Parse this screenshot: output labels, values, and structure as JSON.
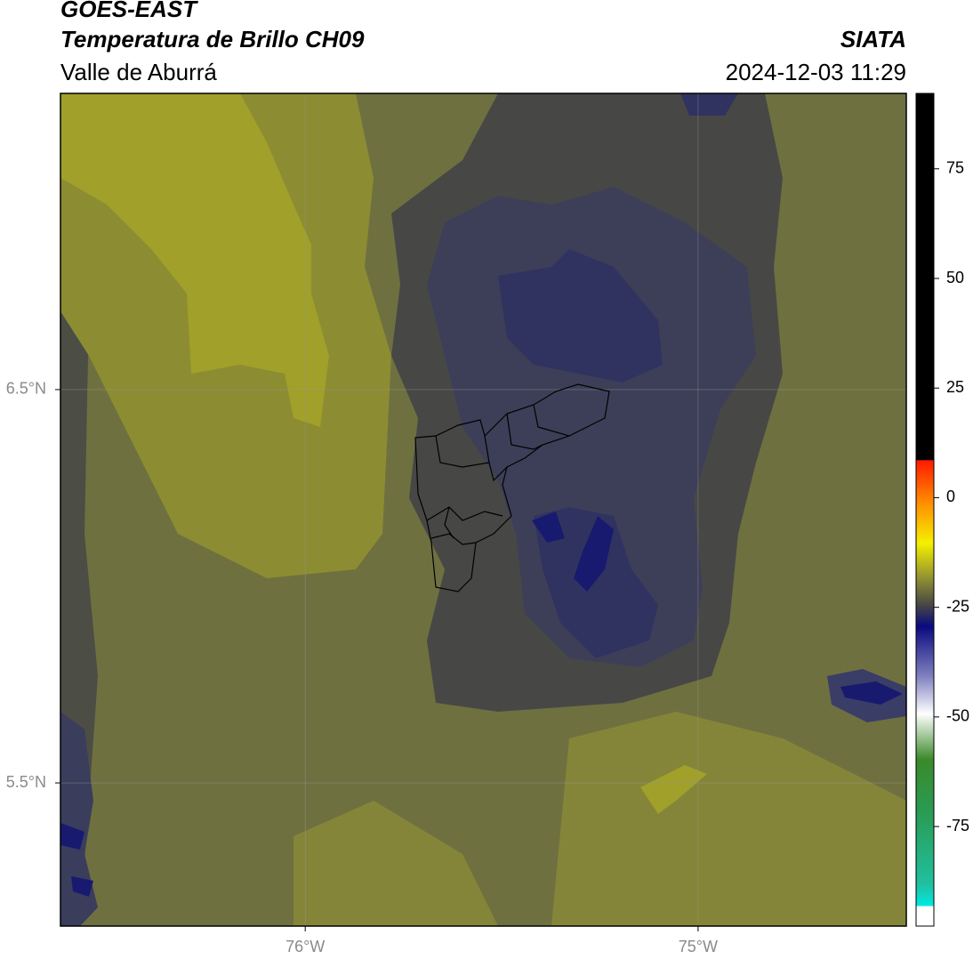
{
  "header": {
    "title": "GOES-EAST",
    "subtitle": "Temperatura de Brillo CH09",
    "region": "Valle de Aburrá",
    "source": "SIATA",
    "timestamp": "2024-12-03 11:29"
  },
  "map": {
    "xlim": [
      -76.623,
      -74.47
    ],
    "ylim": [
      5.136,
      7.253
    ],
    "xticks": [
      {
        "value": -76,
        "label": "76°W"
      },
      {
        "value": -75,
        "label": "75°W"
      }
    ],
    "yticks": [
      {
        "value": 5.5,
        "label": "5.5°N"
      },
      {
        "value": 6.5,
        "label": "6.5°N"
      }
    ]
  },
  "colorbar": {
    "lim": [
      -97.7,
      92.2
    ],
    "ticks": [
      -75,
      -50,
      -25,
      0,
      25,
      50,
      75
    ]
  }
}
